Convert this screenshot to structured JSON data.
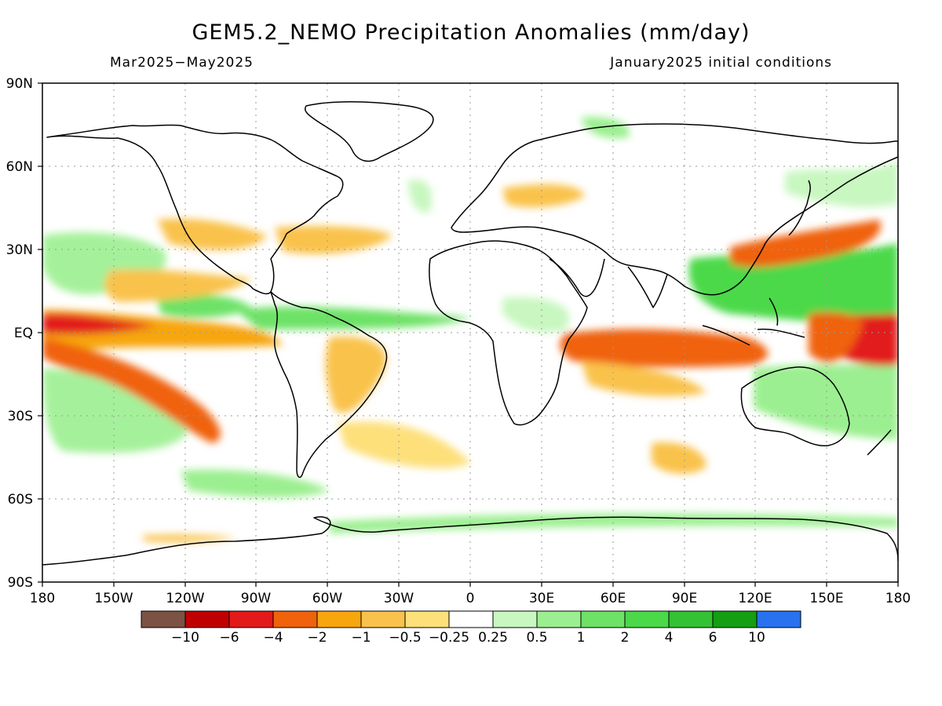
{
  "map": {
    "title": "GEM5.2_NEMO Precipitation Anomalies (mm/day)",
    "period": "Mar2025−May2025",
    "initial_conditions": "January2025 initial conditions",
    "lat_labels": [
      "90N",
      "60N",
      "30N",
      "EQ",
      "30S",
      "60S",
      "90S"
    ],
    "lon_labels": [
      "180",
      "150W",
      "120W",
      "90W",
      "60W",
      "30W",
      "0",
      "30E",
      "60E",
      "90E",
      "120E",
      "150E",
      "180"
    ],
    "colorbar": {
      "colors": [
        "#7b5244",
        "#c00000",
        "#e21a1a",
        "#f0620c",
        "#f7a60e",
        "#f9c24c",
        "#fde07a",
        "#ffffff",
        "#c8f7c0",
        "#9bef90",
        "#6de266",
        "#4bd94a",
        "#33c233",
        "#139e13",
        "#2872ef"
      ],
      "labels": [
        "−10",
        "−6",
        "−4",
        "−2",
        "−1",
        "−0.5",
        "−0.25",
        "0.25",
        "0.5",
        "1",
        "2",
        "4",
        "6",
        "10"
      ]
    },
    "anomaly_regions": [
      {
        "name": "east-pacific-dry-band",
        "color": "#f0620c"
      },
      {
        "name": "west-pacific-dry",
        "color": "#e21a1a"
      },
      {
        "name": "indian-ocean-dry",
        "color": "#f0620c"
      },
      {
        "name": "maritime-wet",
        "color": "#4bd94a"
      },
      {
        "name": "atlantic-itcz-wet",
        "color": "#6de266"
      }
    ]
  }
}
